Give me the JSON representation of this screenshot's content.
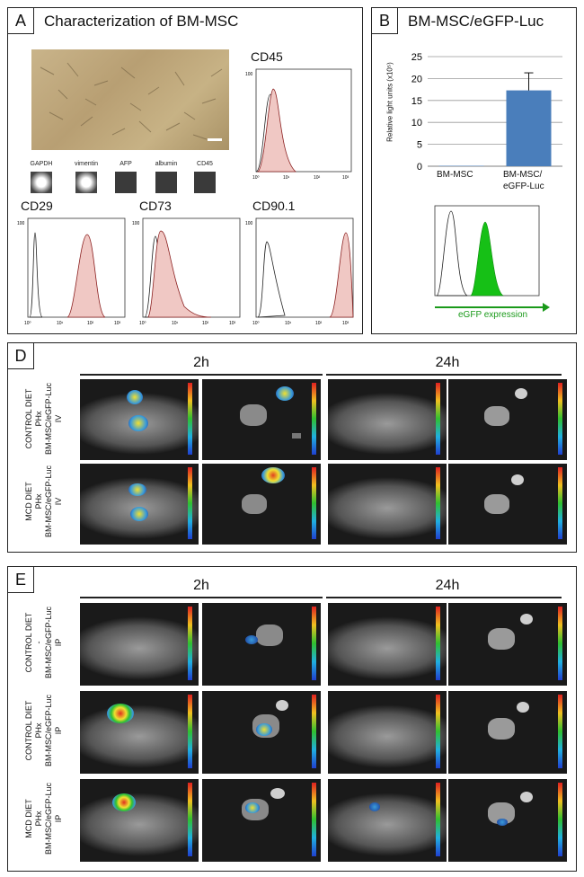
{
  "panelA": {
    "letter": "A",
    "title": "Characterization of BM-MSC",
    "gel_labels": [
      "GAPDH",
      "vimentin",
      "AFP",
      "albumin",
      "CD45"
    ],
    "hist_titles": [
      "CD45",
      "CD29",
      "CD73",
      "CD90.1"
    ],
    "ticks": [
      "10⁰",
      "10¹",
      "10²",
      "10³"
    ],
    "yticks": [
      "100",
      "80",
      "60",
      "40",
      "20",
      "0"
    ]
  },
  "panelB": {
    "letter": "B",
    "title": "BM-MSC/eGFP-Luc",
    "xlabel_1": "BM-MSC",
    "xlabel_2a": "BM-MSC/",
    "xlabel_2b": "eGFP-Luc",
    "ylabel": "Relative light units (x10⁵)",
    "egfp_label": "eGFP expression"
  },
  "chart_data": {
    "type": "bar",
    "categories": [
      "BM-MSC",
      "BM-MSC/eGFP-Luc"
    ],
    "values": [
      0.1,
      17.3
    ],
    "errors": [
      0,
      4.0
    ],
    "ylabel": "Relative light units (x10⁵)",
    "ylim": [
      0,
      25
    ],
    "yticks": [
      0,
      5,
      10,
      15,
      20,
      25
    ],
    "bar_color": "#4a7ebb"
  },
  "panelD": {
    "letter": "D",
    "time1": "2h",
    "time2": "24h",
    "rows": [
      {
        "l1": "CONTROL DIET",
        "l2": "PHx",
        "l3": "BM-MSC/eGFP-Luc",
        "l4": "IV"
      },
      {
        "l1": "MCD DIET",
        "l2": "PHx",
        "l3": "BM-MSC/eGFP-Luc",
        "l4": "IV"
      }
    ]
  },
  "panelE": {
    "letter": "E",
    "time1": "2h",
    "time2": "24h",
    "rows": [
      {
        "l1": "CONTROL DIET",
        "l2": "-",
        "l3": "BM-MSC/eGFP-Luc",
        "l4": "IP"
      },
      {
        "l1": "CONTROL DIET",
        "l2": "PHx",
        "l3": "BM-MSC/eGFP-Luc",
        "l4": "IP"
      },
      {
        "l1": "MCD DIET",
        "l2": "PHx",
        "l3": "BM-MSC/eGFP-Luc",
        "l4": "IP"
      }
    ]
  }
}
